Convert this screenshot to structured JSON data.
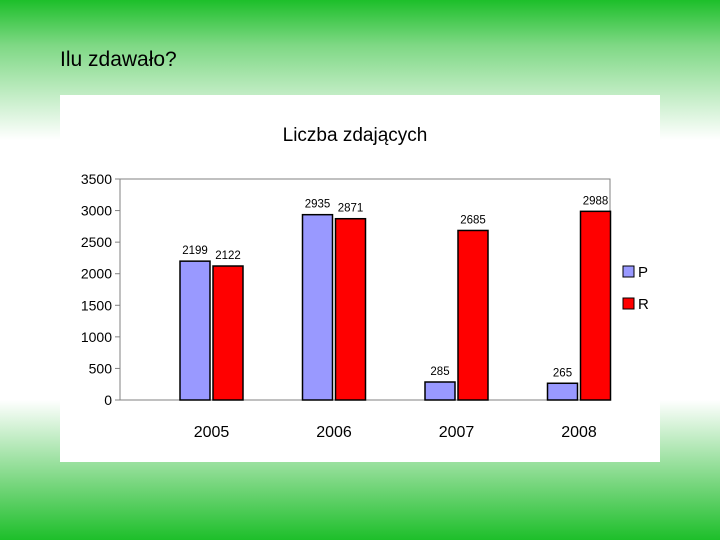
{
  "slide": {
    "title": "Ilu zdawało?"
  },
  "colors": {
    "P": "#9999ff",
    "R": "#ff0000",
    "background_green": "#1dbf2a"
  },
  "chart_data": {
    "type": "bar",
    "title": "Liczba zdających",
    "categories": [
      "2005",
      "2006",
      "2007",
      "2008"
    ],
    "series": [
      {
        "name": "P",
        "values": [
          2199,
          2935,
          285,
          265
        ]
      },
      {
        "name": "R",
        "values": [
          2122,
          2871,
          2685,
          2988
        ]
      }
    ],
    "ylim": [
      0,
      3500
    ],
    "yticks": [
      0,
      500,
      1000,
      1500,
      2000,
      2500,
      3000,
      3500
    ],
    "legend_position": "right",
    "grid": false
  }
}
